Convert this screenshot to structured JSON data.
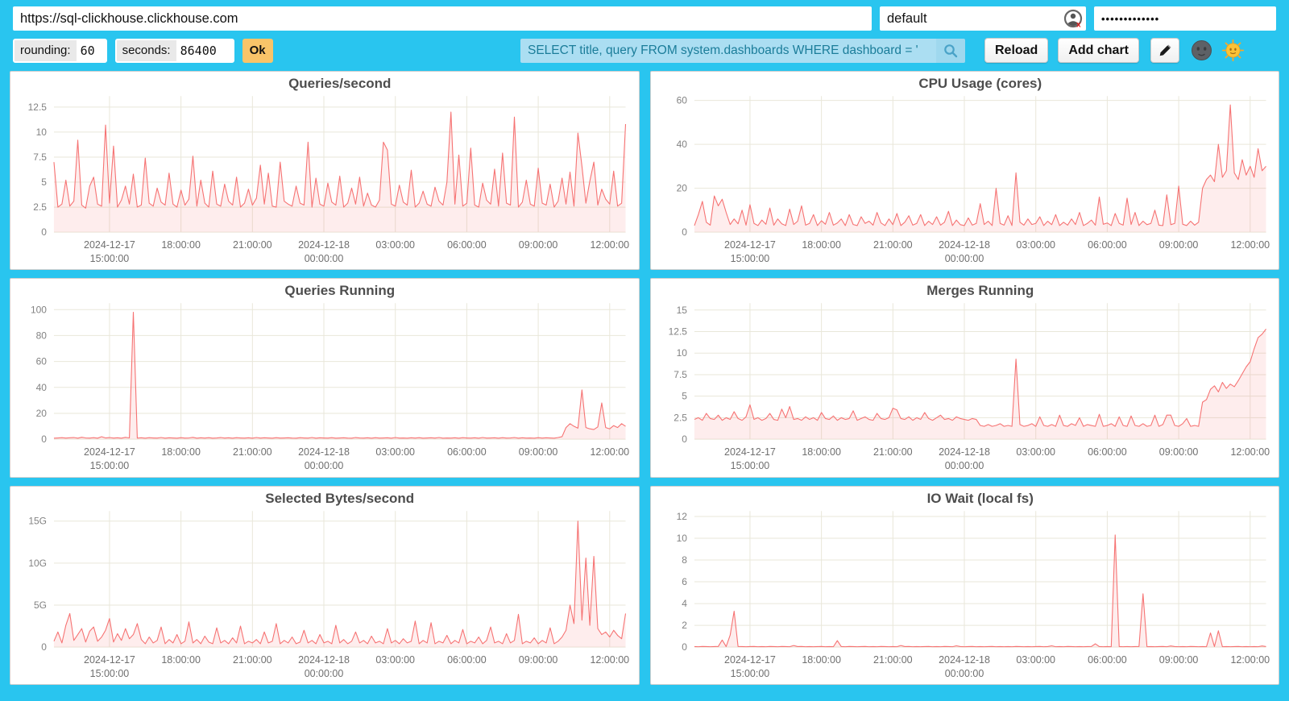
{
  "colors": {
    "bg": "#29c5ef",
    "line": "#f67373",
    "fill": "rgba(247,116,116,0.13)",
    "grid": "#e9e7da",
    "ok": "#f8c469",
    "query_bg": "#abdef2",
    "query_text": "#1b7d9a",
    "panel_border": "#cfcfcf",
    "title_color": "#4d4d4d",
    "axis_label_color": "#828282"
  },
  "toolbar": {
    "url": "https://sql-clickhouse.clickhouse.com",
    "user": "default",
    "password": "•••••••••••••",
    "icons": {
      "password_manager": "person-circle-with-red-x",
      "query_search": "magnifier",
      "edit": "pencil",
      "theme_dark": "dark-moon-face",
      "theme_light": "sun-with-face"
    }
  },
  "controls": {
    "rounding_label": "rounding:",
    "rounding_value": "60",
    "seconds_label": "seconds:",
    "seconds_value": "86400",
    "ok_label": "Ok",
    "query": "SELECT title, query FROM system.dashboards WHERE dashboard = '",
    "reload_label": "Reload",
    "add_chart_label": "Add chart"
  },
  "chart_data": {
    "x_axis": {
      "hours": 24,
      "ticks": [
        {
          "pos": 2.333,
          "lines": [
            "2024-12-17",
            "15:00:00"
          ]
        },
        {
          "pos": 5.333,
          "lines": [
            "18:00:00"
          ]
        },
        {
          "pos": 8.333,
          "lines": [
            "21:00:00"
          ]
        },
        {
          "pos": 11.333,
          "lines": [
            "2024-12-18",
            "00:00:00"
          ]
        },
        {
          "pos": 14.333,
          "lines": [
            "03:00:00"
          ]
        },
        {
          "pos": 17.333,
          "lines": [
            "06:00:00"
          ]
        },
        {
          "pos": 20.333,
          "lines": [
            "09:00:00"
          ]
        },
        {
          "pos": 23.333,
          "lines": [
            "12:00:00"
          ]
        }
      ]
    },
    "charts": [
      {
        "type": "area",
        "title": "Queries/second",
        "y_max": 13.6,
        "y_ticks": [
          {
            "v": 0,
            "t": "0"
          },
          {
            "v": 2.5,
            "t": "2.5"
          },
          {
            "v": 5,
            "t": "5"
          },
          {
            "v": 7.5,
            "t": "7.5"
          },
          {
            "v": 10,
            "t": "10"
          },
          {
            "v": 12.5,
            "t": "12.5"
          }
        ],
        "values": [
          7.0,
          2.5,
          2.8,
          5.2,
          2.6,
          3.1,
          9.2,
          2.7,
          2.4,
          4.6,
          5.5,
          2.8,
          2.6,
          10.7,
          2.9,
          8.6,
          2.5,
          3.2,
          4.6,
          2.8,
          5.8,
          2.5,
          2.7,
          7.4,
          2.9,
          2.6,
          4.4,
          3.0,
          2.7,
          5.9,
          2.8,
          2.5,
          4.2,
          2.7,
          3.3,
          7.6,
          2.6,
          5.2,
          2.9,
          2.5,
          6.1,
          2.8,
          2.6,
          4.8,
          3.1,
          2.7,
          5.5,
          2.5,
          2.9,
          4.3,
          2.7,
          3.4,
          6.7,
          2.8,
          5.9,
          2.6,
          2.5,
          7.0,
          3.1,
          2.8,
          2.6,
          4.6,
          2.9,
          2.7,
          9.0,
          2.5,
          5.4,
          2.8,
          2.6,
          4.9,
          3.0,
          2.7,
          5.6,
          2.5,
          2.9,
          4.4,
          2.8,
          5.5,
          2.6,
          3.9,
          2.7,
          2.5,
          3.2,
          9.0,
          8.2,
          2.8,
          2.6,
          4.7,
          3.0,
          2.7,
          6.2,
          2.5,
          2.9,
          4.1,
          2.8,
          2.6,
          4.5,
          3.1,
          2.7,
          5.0,
          12.0,
          2.8,
          7.7,
          2.6,
          2.9,
          8.4,
          2.7,
          2.5,
          4.9,
          3.2,
          2.8,
          6.3,
          2.6,
          7.9,
          2.9,
          2.7,
          11.5,
          2.5,
          3.0,
          5.2,
          2.8,
          2.6,
          6.4,
          2.9,
          2.7,
          4.8,
          2.5,
          3.1,
          5.4,
          2.8,
          6.0,
          2.6,
          9.9,
          6.6,
          2.9,
          5.1,
          7.0,
          2.7,
          4.3,
          3.3,
          2.8,
          6.1,
          2.6,
          2.9,
          10.8
        ]
      },
      {
        "type": "area",
        "title": "CPU Usage (cores)",
        "y_max": 62,
        "y_ticks": [
          {
            "v": 0,
            "t": "0"
          },
          {
            "v": 20,
            "t": "20"
          },
          {
            "v": 40,
            "t": "40"
          },
          {
            "v": 60,
            "t": "60"
          }
        ],
        "values": [
          3.0,
          8.0,
          14.0,
          4.5,
          3.2,
          16.5,
          12.0,
          15.0,
          9.0,
          3.5,
          6.0,
          3.8,
          10.0,
          3.2,
          12.5,
          4.0,
          3.0,
          5.5,
          3.6,
          11.0,
          3.2,
          6.0,
          3.8,
          3.0,
          10.5,
          3.5,
          5.0,
          12.0,
          3.2,
          4.0,
          8.0,
          3.0,
          5.2,
          3.6,
          9.0,
          3.2,
          4.2,
          6.0,
          3.0,
          8.0,
          3.5,
          3.0,
          7.0,
          4.0,
          5.0,
          3.2,
          9.0,
          4.2,
          3.0,
          6.0,
          3.4,
          8.5,
          3.0,
          4.5,
          7.5,
          3.2,
          4.0,
          8.0,
          3.0,
          5.0,
          3.5,
          7.0,
          3.2,
          4.5,
          9.5,
          3.0,
          5.5,
          3.4,
          3.0,
          6.5,
          3.2,
          4.0,
          13.0,
          3.5,
          5.0,
          3.0,
          20.0,
          4.0,
          3.2,
          7.5,
          3.0,
          27.0,
          4.5,
          3.2,
          6.0,
          3.5,
          4.0,
          7.0,
          3.0,
          5.0,
          3.4,
          8.0,
          3.0,
          4.5,
          3.2,
          6.0,
          3.5,
          9.0,
          3.0,
          4.0,
          5.5,
          3.2,
          16.0,
          3.6,
          4.2,
          3.0,
          8.5,
          4.0,
          3.2,
          15.5,
          3.5,
          9.0,
          3.0,
          5.0,
          3.4,
          4.0,
          10.0,
          3.2,
          3.0,
          17.0,
          3.4,
          4.0,
          21.0,
          3.6,
          3.0,
          5.0,
          3.2,
          4.5,
          20.0,
          24.0,
          26.0,
          23.0,
          40.0,
          25.0,
          28.0,
          58.0,
          27.0,
          24.0,
          33.0,
          26.0,
          30.0,
          25.0,
          38.0,
          28.0,
          30.0
        ]
      },
      {
        "type": "area",
        "title": "Queries Running",
        "y_max": 105,
        "y_ticks": [
          {
            "v": 0,
            "t": "0"
          },
          {
            "v": 20,
            "t": "20"
          },
          {
            "v": 40,
            "t": "40"
          },
          {
            "v": 60,
            "t": "60"
          },
          {
            "v": 80,
            "t": "80"
          },
          {
            "v": 100,
            "t": "100"
          }
        ],
        "values": [
          0.8,
          1.0,
          1.2,
          0.9,
          1.1,
          1.3,
          0.8,
          1.5,
          1.0,
          0.9,
          1.2,
          0.8,
          1.9,
          1.0,
          1.3,
          0.9,
          1.1,
          0.8,
          1.4,
          1.0,
          98.0,
          0.9,
          1.1,
          0.8,
          1.2,
          1.0,
          0.9,
          1.3,
          0.8,
          1.1,
          1.0,
          0.8,
          1.2,
          0.9,
          1.0,
          1.4,
          0.8,
          1.1,
          0.9,
          1.2,
          0.8,
          1.0,
          1.3,
          0.9,
          1.1,
          0.8,
          1.2,
          1.0,
          0.9,
          1.1,
          0.8,
          1.3,
          0.9,
          1.1,
          1.0,
          0.8,
          1.2,
          0.9,
          1.0,
          1.1,
          0.9,
          0.8,
          1.2,
          1.0,
          0.9,
          1.3,
          0.8,
          1.1,
          1.0,
          0.9,
          1.2,
          0.8,
          1.0,
          1.1,
          0.9,
          0.8,
          1.3,
          1.0,
          0.9,
          1.1,
          0.8,
          1.2,
          0.9,
          1.0,
          1.1,
          0.8,
          1.3,
          0.9,
          1.0,
          0.8,
          1.1,
          0.9,
          1.2,
          0.8,
          1.0,
          1.1,
          0.9,
          1.3,
          0.8,
          1.0,
          0.9,
          1.1,
          0.8,
          1.2,
          1.0,
          0.9,
          1.1,
          0.8,
          1.3,
          0.9,
          1.0,
          1.1,
          0.8,
          1.2,
          0.9,
          1.0,
          1.3,
          0.8,
          1.1,
          0.9,
          1.0,
          0.8,
          1.2,
          0.9,
          1.1,
          1.0,
          0.8,
          1.3,
          2.0,
          9.0,
          12.0,
          10.0,
          8.5,
          38.0,
          9.0,
          8.0,
          7.5,
          9.5,
          28.0,
          9.0,
          8.0,
          10.5,
          9.0,
          12.0,
          10.0
        ]
      },
      {
        "type": "area",
        "title": "Merges Running",
        "y_max": 15.8,
        "y_ticks": [
          {
            "v": 0,
            "t": "0"
          },
          {
            "v": 2.5,
            "t": "2.5"
          },
          {
            "v": 5,
            "t": "5"
          },
          {
            "v": 7.5,
            "t": "7.5"
          },
          {
            "v": 10,
            "t": "10"
          },
          {
            "v": 12.5,
            "t": "12.5"
          },
          {
            "v": 15,
            "t": "15"
          }
        ],
        "values": [
          2.3,
          2.5,
          2.2,
          3.0,
          2.4,
          2.3,
          2.8,
          2.2,
          2.5,
          2.3,
          3.2,
          2.4,
          2.2,
          2.6,
          4.0,
          2.3,
          2.5,
          2.2,
          2.4,
          3.0,
          2.3,
          2.2,
          3.5,
          2.5,
          3.8,
          2.3,
          2.4,
          2.2,
          2.6,
          2.3,
          2.5,
          2.2,
          3.1,
          2.4,
          2.3,
          2.7,
          2.2,
          2.5,
          2.3,
          2.4,
          3.3,
          2.2,
          2.4,
          2.6,
          2.3,
          2.2,
          3.0,
          2.4,
          2.3,
          2.5,
          3.6,
          3.4,
          2.4,
          2.3,
          2.6,
          2.2,
          2.5,
          2.3,
          3.1,
          2.4,
          2.2,
          2.5,
          2.8,
          2.3,
          2.4,
          2.2,
          2.6,
          2.4,
          2.3,
          2.2,
          2.4,
          2.3,
          1.6,
          1.5,
          1.7,
          1.5,
          1.6,
          1.8,
          1.5,
          1.6,
          1.5,
          9.3,
          1.7,
          1.5,
          1.6,
          1.8,
          1.5,
          2.6,
          1.6,
          1.5,
          1.7,
          1.5,
          2.8,
          1.6,
          1.5,
          1.8,
          1.6,
          2.5,
          1.5,
          1.7,
          1.6,
          1.5,
          2.9,
          1.5,
          1.6,
          1.8,
          1.5,
          2.6,
          1.6,
          1.5,
          2.7,
          1.6,
          1.5,
          1.8,
          1.5,
          1.6,
          2.8,
          1.5,
          1.7,
          2.8,
          2.8,
          1.6,
          1.5,
          1.8,
          2.4,
          1.5,
          1.6,
          1.5,
          4.3,
          4.6,
          5.8,
          6.2,
          5.5,
          6.6,
          5.9,
          6.4,
          6.1,
          6.8,
          7.6,
          8.4,
          9.0,
          10.5,
          11.8,
          12.2,
          12.8
        ]
      },
      {
        "type": "area",
        "title": "Selected Bytes/second",
        "unit": "G",
        "y_max": 16.2,
        "y_ticks": [
          {
            "v": 0,
            "t": "0"
          },
          {
            "v": 5,
            "t": "5G"
          },
          {
            "v": 10,
            "t": "10G"
          },
          {
            "v": 15,
            "t": "15G"
          }
        ],
        "values": [
          0.7,
          1.8,
          0.5,
          2.6,
          4.0,
          0.8,
          1.5,
          2.2,
          0.6,
          1.9,
          2.4,
          0.7,
          1.2,
          2.0,
          3.4,
          0.6,
          1.6,
          0.8,
          2.2,
          1.0,
          1.5,
          2.8,
          0.9,
          0.4,
          1.2,
          0.5,
          0.8,
          2.4,
          0.4,
          0.9,
          0.5,
          1.5,
          0.4,
          0.7,
          3.0,
          0.5,
          0.9,
          0.4,
          1.3,
          0.6,
          0.4,
          2.3,
          0.5,
          0.8,
          0.4,
          1.1,
          0.5,
          2.5,
          0.4,
          0.7,
          0.5,
          0.9,
          0.4,
          1.8,
          0.5,
          0.7,
          2.8,
          0.4,
          0.8,
          0.5,
          1.2,
          0.4,
          0.6,
          2.0,
          0.5,
          0.8,
          0.4,
          1.5,
          0.5,
          0.7,
          0.4,
          2.6,
          0.5,
          0.9,
          0.4,
          0.7,
          1.8,
          0.5,
          0.8,
          0.4,
          1.3,
          0.5,
          0.7,
          0.4,
          2.2,
          0.5,
          0.8,
          0.4,
          1.0,
          0.5,
          0.7,
          3.1,
          0.4,
          0.8,
          0.5,
          2.9,
          0.4,
          0.7,
          0.5,
          1.4,
          0.4,
          0.8,
          0.5,
          2.1,
          0.4,
          0.7,
          0.5,
          1.2,
          0.4,
          0.8,
          2.4,
          0.5,
          0.7,
          0.4,
          1.6,
          0.5,
          0.8,
          3.9,
          0.4,
          0.7,
          0.5,
          1.1,
          0.4,
          0.8,
          0.5,
          2.3,
          0.4,
          0.7,
          1.2,
          2.0,
          5.0,
          2.8,
          15.0,
          3.2,
          10.6,
          2.6,
          10.8,
          2.2,
          1.5,
          1.8,
          1.2,
          2.0,
          1.4,
          1.0,
          4.0
        ]
      },
      {
        "type": "area",
        "title": "IO Wait (local fs)",
        "y_max": 12.5,
        "y_ticks": [
          {
            "v": 0,
            "t": "0"
          },
          {
            "v": 2,
            "t": "2"
          },
          {
            "v": 4,
            "t": "4"
          },
          {
            "v": 6,
            "t": "6"
          },
          {
            "v": 8,
            "t": "8"
          },
          {
            "v": 10,
            "t": "10"
          },
          {
            "v": 12,
            "t": "12"
          }
        ],
        "values": [
          0.05,
          0.04,
          0.06,
          0.05,
          0.04,
          0.05,
          0.06,
          0.65,
          0.05,
          1.1,
          3.3,
          0.06,
          0.05,
          0.04,
          0.05,
          0.06,
          0.04,
          0.05,
          0.04,
          0.06,
          0.05,
          0.04,
          0.06,
          0.05,
          0.04,
          0.15,
          0.05,
          0.06,
          0.04,
          0.05,
          0.04,
          0.05,
          0.06,
          0.04,
          0.05,
          0.04,
          0.6,
          0.05,
          0.04,
          0.06,
          0.05,
          0.04,
          0.05,
          0.06,
          0.04,
          0.05,
          0.04,
          0.06,
          0.05,
          0.04,
          0.05,
          0.04,
          0.15,
          0.05,
          0.06,
          0.04,
          0.05,
          0.04,
          0.05,
          0.06,
          0.04,
          0.05,
          0.04,
          0.06,
          0.05,
          0.04,
          0.12,
          0.05,
          0.04,
          0.05,
          0.06,
          0.04,
          0.05,
          0.04,
          0.05,
          0.06,
          0.04,
          0.05,
          0.04,
          0.05,
          0.04,
          0.06,
          0.05,
          0.04,
          0.05,
          0.04,
          0.05,
          0.06,
          0.04,
          0.05,
          0.12,
          0.04,
          0.05,
          0.04,
          0.06,
          0.05,
          0.04,
          0.05,
          0.04,
          0.05,
          0.06,
          0.3,
          0.05,
          0.04,
          0.05,
          0.04,
          10.3,
          0.05,
          0.04,
          0.05,
          0.04,
          0.05,
          0.06,
          4.9,
          0.04,
          0.05,
          0.04,
          0.05,
          0.06,
          0.04,
          0.1,
          0.05,
          0.04,
          0.05,
          0.04,
          0.06,
          0.05,
          0.04,
          0.05,
          0.04,
          1.3,
          0.05,
          1.5,
          0.04,
          0.05,
          0.04,
          0.05,
          0.06,
          0.04,
          0.05,
          0.04,
          0.05,
          0.04,
          0.1,
          0.05
        ]
      }
    ]
  }
}
